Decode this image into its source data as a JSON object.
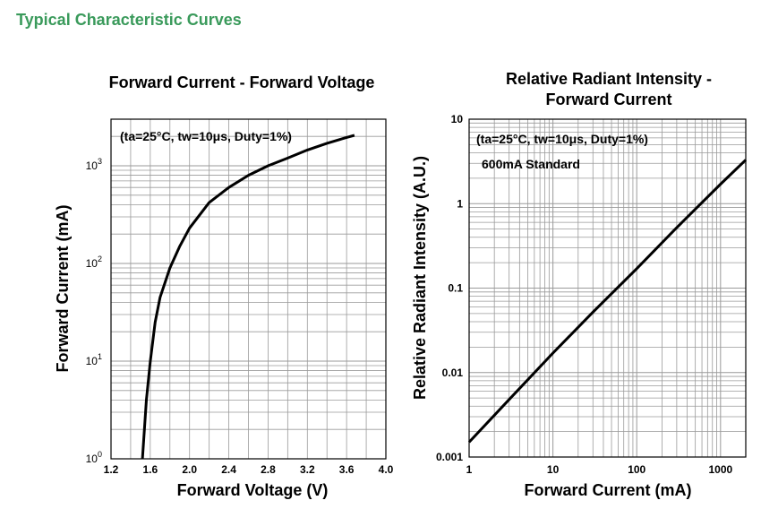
{
  "page": {
    "heading": "Typical Characteristic Curves"
  },
  "chart_data": [
    {
      "type": "line",
      "title": "Forward Current - Forward Voltage",
      "xlabel": "Forward Voltage (V)",
      "ylabel": "Forward Current (mA)",
      "annotation": "(ta=25°C, tw=10μs, Duty=1%)",
      "xscale": "linear",
      "yscale": "log",
      "xlim": [
        1.2,
        4.0
      ],
      "ylim": [
        1,
        3000
      ],
      "x_ticks": [
        "1.2",
        "1.6",
        "2.0",
        "2.4",
        "2.8",
        "3.2",
        "3.6",
        "4.0"
      ],
      "y_ticks": [
        {
          "base": "10",
          "exp": "0"
        },
        {
          "base": "10",
          "exp": "1"
        },
        {
          "base": "10",
          "exp": "2"
        },
        {
          "base": "10",
          "exp": "3"
        }
      ],
      "grid": true,
      "series": [
        {
          "x": [
            1.52,
            1.56,
            1.6,
            1.65,
            1.7,
            1.8,
            1.9,
            2.0,
            2.2,
            2.4,
            2.6,
            2.8,
            3.0,
            3.2,
            3.4,
            3.6,
            3.68
          ],
          "y": [
            1,
            4,
            10,
            25,
            45,
            90,
            150,
            230,
            420,
            600,
            800,
            1000,
            1200,
            1450,
            1700,
            1950,
            2050
          ]
        }
      ]
    },
    {
      "type": "line",
      "title": "Relative Radiant Intensity -\nForward Current",
      "xlabel": "Forward Current (mA)",
      "ylabel": "Relative Radiant Intensity (A.U.)",
      "annotations": [
        "(ta=25°C, tw=10μs, Duty=1%)",
        "600mA Standard"
      ],
      "xscale": "log",
      "yscale": "log",
      "xlim": [
        1,
        2000
      ],
      "ylim": [
        0.001,
        10
      ],
      "x_ticks": [
        "1",
        "10",
        "100",
        "1000"
      ],
      "y_ticks": [
        "0.001",
        "0.01",
        "0.1",
        "1",
        "10"
      ],
      "grid": true,
      "series": [
        {
          "x": [
            1,
            3,
            10,
            30,
            100,
            300,
            1000,
            2000
          ],
          "y": [
            0.0015,
            0.0048,
            0.017,
            0.052,
            0.17,
            0.52,
            1.7,
            3.3
          ]
        }
      ]
    }
  ]
}
